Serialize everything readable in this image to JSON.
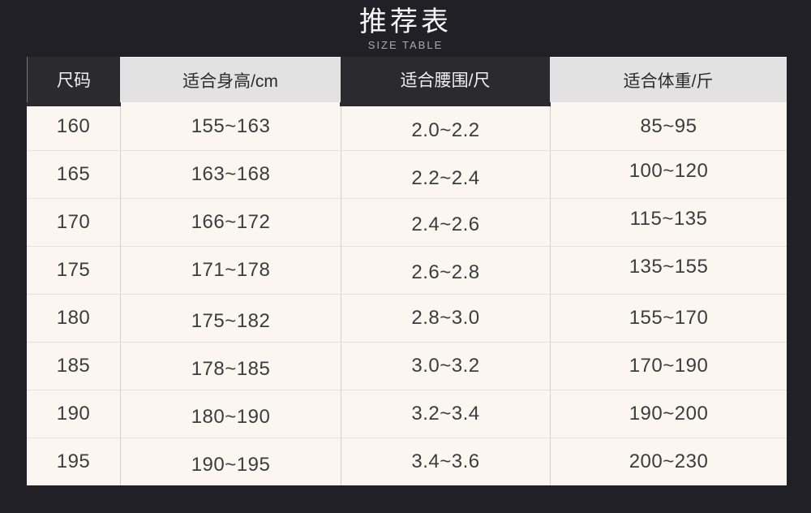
{
  "header": {
    "title": "推荐表",
    "subtitle": "SIZE TABLE"
  },
  "chart_data": {
    "type": "table",
    "title": "推荐表",
    "subtitle": "SIZE TABLE",
    "columns": [
      "尺码",
      "适合身高/cm",
      "适合腰围/尺",
      "适合体重/斤"
    ],
    "rows": [
      [
        "160",
        "155~163",
        "2.0~2.2",
        "85~95"
      ],
      [
        "165",
        "163~168",
        "2.2~2.4",
        "100~120"
      ],
      [
        "170",
        "166~172",
        "2.4~2.6",
        "115~135"
      ],
      [
        "175",
        "171~178",
        "2.6~2.8",
        "135~155"
      ],
      [
        "180",
        "175~182",
        "2.8~3.0",
        "155~170"
      ],
      [
        "185",
        "178~185",
        "3.0~3.2",
        "170~190"
      ],
      [
        "190",
        "180~190",
        "3.2~3.4",
        "190~200"
      ],
      [
        "195",
        "190~195",
        "3.4~3.6",
        "200~230"
      ]
    ],
    "layout": {
      "header_style_by_column": [
        "dark",
        "light",
        "dark",
        "light"
      ],
      "grid": "on"
    }
  },
  "colors": {
    "page_background": "#202026",
    "header_dark_bg": "#2a2a2f",
    "header_dark_text": "#f0f0f0",
    "header_light_bg": "#e2e2e2",
    "header_light_text": "#2b2b2b",
    "cell_bg": "#fbf6f0",
    "cell_text": "#3c3c3c",
    "title_text": "#f7f7f7",
    "subtitle_text": "#a9aab0"
  }
}
